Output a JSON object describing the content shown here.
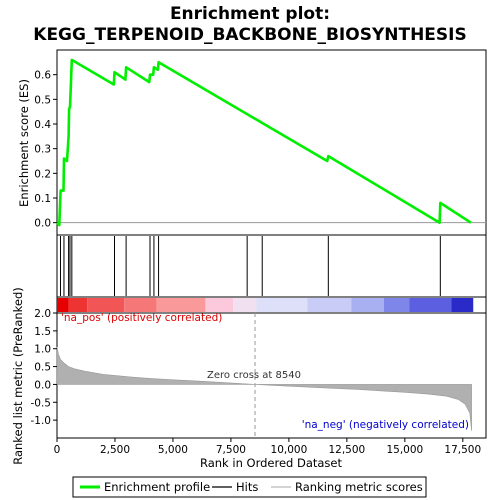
{
  "chart_data": {
    "type": "line",
    "title_line1": "Enrichment plot:",
    "title_line2": "KEGG_TERPENOID_BACKBONE_BIOSYNTHESIS",
    "xlabel": "Rank in Ordered Dataset",
    "es_ylabel": "Enrichment score (ES)",
    "rank_ylabel": "Ranked list metric (PreRanked)",
    "xlim": [
      0,
      18500
    ],
    "es_ylim": [
      -0.05,
      0.7
    ],
    "rank_ylim": [
      -1.5,
      2.0
    ],
    "x_ticks": [
      0,
      2500,
      5000,
      7500,
      10000,
      12500,
      15000,
      17500
    ],
    "x_tick_labels": [
      "0",
      "2,500",
      "5,000",
      "7,500",
      "10,000",
      "12,500",
      "15,000",
      "17,500"
    ],
    "es_ticks": [
      0.0,
      0.1,
      0.2,
      0.3,
      0.4,
      0.5,
      0.6
    ],
    "es_tick_labels": [
      "0.0",
      "0.1",
      "0.2",
      "0.3",
      "0.4",
      "0.5",
      "0.6"
    ],
    "rank_ticks": [
      2.0,
      1.5,
      1.0,
      0.5,
      0.0,
      -0.5,
      -1.0
    ],
    "rank_tick_labels": [
      "2.0",
      "1.5",
      "1.0",
      "0.5",
      "0.0",
      "-0.5",
      "-1.0"
    ],
    "enrichment_profile": {
      "name": "Enrichment profile",
      "color": "#00ee00",
      "x": [
        0,
        100,
        150,
        160,
        280,
        300,
        430,
        500,
        520,
        560,
        600,
        640,
        2450,
        2480,
        2950,
        2980,
        3980,
        4010,
        4150,
        4180,
        4350,
        4380,
        11650,
        11700,
        16500,
        16530,
        17850
      ],
      "y": [
        0.0,
        -0.01,
        0.12,
        0.13,
        0.13,
        0.26,
        0.25,
        0.35,
        0.46,
        0.47,
        0.56,
        0.66,
        0.56,
        0.61,
        0.58,
        0.63,
        0.57,
        0.6,
        0.6,
        0.63,
        0.62,
        0.65,
        0.25,
        0.27,
        0.0,
        0.08,
        0.0
      ]
    },
    "hits": {
      "name": "Hits",
      "x": [
        150,
        300,
        500,
        560,
        640,
        2480,
        2980,
        4010,
        4180,
        4380,
        8200,
        8850,
        11700,
        16530
      ]
    },
    "ranking_metric": {
      "name": "Ranking metric scores",
      "x": [
        0,
        60,
        150,
        300,
        500,
        800,
        1200,
        2000,
        3000,
        4000,
        5000,
        6000,
        7000,
        8540,
        10000,
        11000,
        12000,
        13000,
        14000,
        15000,
        16000,
        16800,
        17300,
        17600,
        17800,
        17880
      ],
      "y": [
        1.05,
        0.85,
        0.7,
        0.6,
        0.5,
        0.43,
        0.37,
        0.28,
        0.22,
        0.17,
        0.13,
        0.1,
        0.06,
        0.0,
        -0.05,
        -0.08,
        -0.11,
        -0.14,
        -0.18,
        -0.22,
        -0.27,
        -0.33,
        -0.42,
        -0.55,
        -0.8,
        -1.3
      ]
    },
    "heatmap_band_colors": [
      "#e60000",
      "#ee3333",
      "#f25555",
      "#f67777",
      "#fa9999",
      "#fcc8dc",
      "#f0e0f0",
      "#dde0f8",
      "#c8ccf6",
      "#a8b0f2",
      "#7f86ea",
      "#5c5fe0",
      "#2a2ac8",
      "#0000a8"
    ],
    "heatmap_band_edges": [
      0,
      500,
      1300,
      2900,
      4300,
      6400,
      7600,
      8600,
      10800,
      12700,
      14100,
      15200,
      17000,
      17950
    ],
    "positive_label": "'na_pos' (positively correlated)",
    "negative_label": "'na_neg' (negatively correlated)",
    "zero_cross_label": "Zero cross at 8540",
    "zero_cross_x": 8540,
    "legend": [
      "Enrichment profile",
      "Hits",
      "Ranking metric scores"
    ],
    "legend_placement": "bottom-center",
    "colors": {
      "profile": "#00ee00",
      "hits": "#000000",
      "metric_fill": "#b0b0b0",
      "positive": "#dd0000",
      "negative": "#0000cc"
    }
  }
}
